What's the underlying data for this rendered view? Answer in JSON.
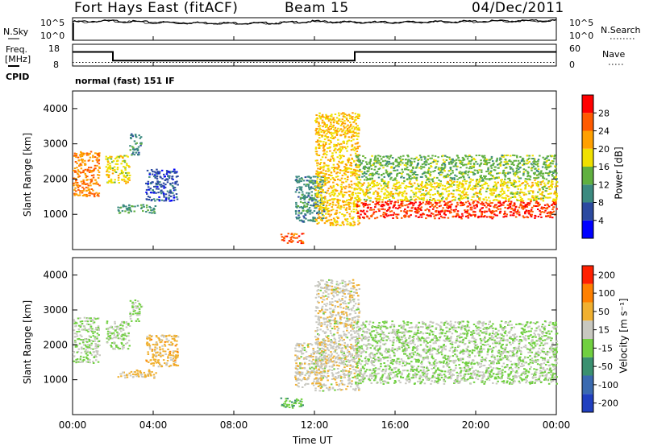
{
  "header": {
    "title": "Fort Hays East (fitACF)",
    "beam": "Beam 15",
    "date": "04/Dec/2011"
  },
  "noise_panel": {
    "left_label": "N.Sky",
    "right_label": "N.Search",
    "left_ticks": [
      "10^5",
      "10^0"
    ],
    "right_ticks": [
      "10^5",
      "10^0"
    ]
  },
  "freq_panel": {
    "left_label_line1": "Freq.",
    "left_label_line2": "[MHz]",
    "right_label": "Nave",
    "left_ticks": [
      "18",
      "8"
    ],
    "right_ticks": [
      "60",
      "0"
    ]
  },
  "cpid_panel": {
    "label": "CPID",
    "text": "normal (fast) 151 IF"
  },
  "power_panel": {
    "ylabel": "Slant Range [km]",
    "yticks": [
      "4000",
      "3000",
      "2000",
      "1000"
    ],
    "colorbar_label": "Power [dB]",
    "colorbar_ticks": [
      "28",
      "24",
      "20",
      "16",
      "12",
      "8",
      "4"
    ],
    "colors": [
      "#0000ff",
      "#2c4aa0",
      "#3c8a80",
      "#60b040",
      "#f0e000",
      "#ffa000",
      "#ff5a00",
      "#ff0000"
    ]
  },
  "velocity_panel": {
    "ylabel": "Slant Range [km]",
    "yticks": [
      "4000",
      "3000",
      "2000",
      "1000"
    ],
    "colorbar_label": "Velocity [m s⁻¹]",
    "colorbar_ticks": [
      "200",
      "100",
      "50",
      "15",
      "-15",
      "-50",
      "-100",
      "-200"
    ],
    "colors": [
      "#2040c0",
      "#3a6ab0",
      "#3a9070",
      "#70d040",
      "#c8c8c0",
      "#f0b030",
      "#ff8000",
      "#ff2000"
    ]
  },
  "x_axis": {
    "label": "Time UT",
    "ticks": [
      "00:00",
      "04:00",
      "08:00",
      "12:00",
      "16:00",
      "20:00",
      "00:00"
    ]
  },
  "chart_data": [
    {
      "type": "line",
      "name": "noise",
      "x_hours": [
        0,
        2,
        4,
        6,
        8,
        10,
        12,
        14,
        16,
        18,
        20,
        22,
        24
      ],
      "series": [
        {
          "name": "N.Sky",
          "values_log10": [
            4.1,
            4.3,
            4.0,
            3.9,
            3.8,
            3.8,
            4.2,
            4.0,
            4.0,
            4.1,
            4.2,
            4.3,
            4.4
          ]
        },
        {
          "name": "N.Search",
          "values_log10": [
            4.0,
            4.2,
            3.9,
            3.8,
            3.7,
            3.8,
            4.1,
            3.9,
            3.9,
            4.0,
            4.1,
            4.2,
            4.3
          ]
        }
      ]
    },
    {
      "type": "line",
      "name": "frequency_nave",
      "steps": [
        {
          "from_hour": 0.0,
          "to_hour": 2.0,
          "freq_mhz": 14.5,
          "nave": 10
        },
        {
          "from_hour": 2.0,
          "to_hour": 14.0,
          "freq_mhz": 10.5,
          "nave": 10
        },
        {
          "from_hour": 14.0,
          "to_hour": 24.0,
          "freq_mhz": 14.5,
          "nave": 10
        }
      ],
      "ylim_freq": [
        8,
        18
      ],
      "ylim_nave": [
        0,
        60
      ]
    },
    {
      "type": "heatmap",
      "name": "power",
      "units": "dB",
      "xlim_hours": [
        0,
        24
      ],
      "ylim_km": [
        0,
        4500
      ],
      "clim": [
        0,
        32
      ],
      "regions": [
        {
          "t0": 0.0,
          "t1": 1.3,
          "r0": 1500,
          "r1": 2800,
          "value": 24
        },
        {
          "t0": 1.6,
          "t1": 2.8,
          "r0": 1900,
          "r1": 2700,
          "value": 18
        },
        {
          "t0": 2.8,
          "t1": 3.4,
          "r0": 2700,
          "r1": 3300,
          "value": 10
        },
        {
          "t0": 2.2,
          "t1": 4.1,
          "r0": 1050,
          "r1": 1300,
          "value": 12
        },
        {
          "t0": 3.6,
          "t1": 5.2,
          "r0": 1400,
          "r1": 2300,
          "value": 6
        },
        {
          "t0": 10.3,
          "t1": 11.4,
          "r0": 200,
          "r1": 500,
          "value": 26
        },
        {
          "t0": 11.0,
          "t1": 12.5,
          "r0": 800,
          "r1": 2100,
          "value": 10
        },
        {
          "t0": 12.0,
          "t1": 14.2,
          "r0": 700,
          "r1": 3900,
          "value": 20
        },
        {
          "t0": 14.0,
          "t1": 24.0,
          "r0": 900,
          "r1": 1400,
          "value": 28
        },
        {
          "t0": 14.0,
          "t1": 24.0,
          "r0": 1400,
          "r1": 2000,
          "value": 18
        },
        {
          "t0": 14.0,
          "t1": 24.0,
          "r0": 2000,
          "r1": 2700,
          "value": 14
        }
      ]
    },
    {
      "type": "heatmap",
      "name": "velocity",
      "units": "m s-1",
      "xlim_hours": [
        0,
        24
      ],
      "ylim_km": [
        0,
        4500
      ],
      "clim": [
        -200,
        200
      ],
      "regions": [
        {
          "t0": 0.0,
          "t1": 1.3,
          "r0": 1500,
          "r1": 2800,
          "value": 0
        },
        {
          "t0": 1.6,
          "t1": 2.8,
          "r0": 1900,
          "r1": 2700,
          "value": 0
        },
        {
          "t0": 2.8,
          "t1": 3.4,
          "r0": 2700,
          "r1": 3300,
          "value": 0
        },
        {
          "t0": 2.2,
          "t1": 4.1,
          "r0": 1050,
          "r1": 1300,
          "value": 60
        },
        {
          "t0": 3.6,
          "t1": 5.2,
          "r0": 1400,
          "r1": 2300,
          "value": 70
        },
        {
          "t0": 10.3,
          "t1": 11.4,
          "r0": 200,
          "r1": 500,
          "value": -40
        },
        {
          "t0": 11.0,
          "t1": 12.5,
          "r0": 800,
          "r1": 2100,
          "value": 30
        },
        {
          "t0": 12.0,
          "t1": 14.2,
          "r0": 700,
          "r1": 3900,
          "value": 30
        },
        {
          "t0": 14.0,
          "t1": 24.0,
          "r0": 900,
          "r1": 2100,
          "value": 0
        },
        {
          "t0": 14.0,
          "t1": 24.0,
          "r0": 2100,
          "r1": 2700,
          "value": 0
        }
      ]
    }
  ]
}
